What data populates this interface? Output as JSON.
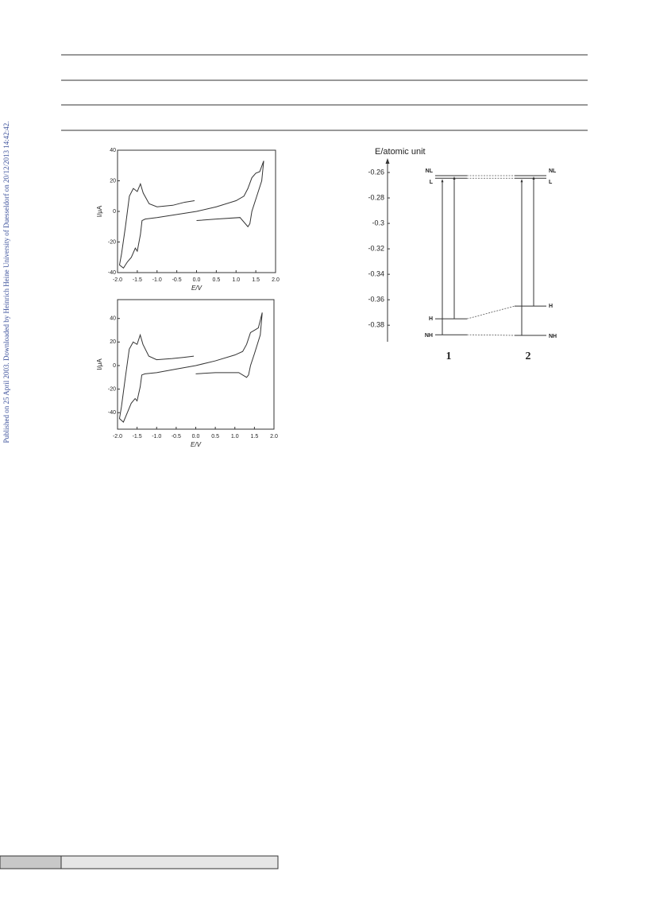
{
  "sidebar": "Published on 25 April 2003. Downloaded by Heinrich Heine University of Duesseldorf on 20/12/2013 14:42:42.",
  "chart_data": [
    {
      "type": "line",
      "xlabel": "E/V",
      "ylabel": "I/μA",
      "xlim": [
        -2.0,
        2.0
      ],
      "ylim": [
        -40,
        40
      ],
      "xticks": [
        {
          "value": -2.0,
          "label": "-2.0"
        },
        {
          "value": -1.5,
          "label": "-1.5"
        },
        {
          "value": -1.0,
          "label": "-1.0"
        },
        {
          "value": -0.5,
          "label": "-0.5"
        },
        {
          "value": 0,
          "label": "0.0"
        },
        {
          "value": 0.5,
          "label": "0.5"
        },
        {
          "value": 1.0,
          "label": "1.0"
        },
        {
          "value": 1.5,
          "label": "1.5"
        },
        {
          "value": 2.0,
          "label": "2.0"
        }
      ],
      "yticks": [
        40,
        20,
        0,
        -20,
        -40
      ],
      "series": [
        {
          "color": "#333333",
          "x": [
            -0.05,
            -0.3,
            -0.6,
            -1.0,
            -1.2,
            -1.35,
            -1.42,
            -1.5,
            -1.6,
            -1.7,
            -1.8,
            -1.9,
            -1.95,
            -1.85,
            -1.75,
            -1.65,
            -1.55,
            -1.5,
            -1.42,
            -1.38,
            -1.3,
            -1.0,
            -0.5,
            0,
            0.5,
            1.0,
            1.2,
            1.3,
            1.4,
            1.5,
            1.6,
            1.7,
            1.65,
            1.5,
            1.4,
            1.35,
            1.3,
            1.1,
            0.5,
            0
          ],
          "values": [
            7,
            6,
            4,
            3,
            5,
            12,
            18,
            13,
            15,
            10,
            -10,
            -28,
            -35,
            -37,
            -33,
            -30,
            -24,
            -26,
            -15,
            -6,
            -5,
            -4,
            -2,
            0,
            3,
            7,
            10,
            15,
            22,
            25,
            26,
            33,
            20,
            8,
            0,
            -8,
            -10,
            -4,
            -5,
            -6
          ]
        }
      ]
    },
    {
      "type": "line",
      "xlabel": "E/V",
      "ylabel": "I/μA",
      "xlim": [
        -2.0,
        2.0
      ],
      "ylim": [
        -54,
        56
      ],
      "xticks": [
        {
          "value": -2.0,
          "label": "-2.0"
        },
        {
          "value": -1.5,
          "label": "-1.5"
        },
        {
          "value": -1.0,
          "label": "-1.0"
        },
        {
          "value": -0.5,
          "label": "-0.5"
        },
        {
          "value": 0,
          "label": "0.0"
        },
        {
          "value": 0.5,
          "label": "0.5"
        },
        {
          "value": 1.0,
          "label": "1.0"
        },
        {
          "value": 1.5,
          "label": "1.5"
        },
        {
          "value": 2.0,
          "label": "2.0"
        }
      ],
      "yticks": [
        40,
        20,
        0,
        -20,
        -40
      ],
      "series": [
        {
          "color": "#333333",
          "x": [
            -0.05,
            -0.3,
            -0.6,
            -1.0,
            -1.2,
            -1.35,
            -1.42,
            -1.5,
            -1.6,
            -1.7,
            -1.8,
            -1.9,
            -1.95,
            -1.85,
            -1.75,
            -1.65,
            -1.55,
            -1.5,
            -1.42,
            -1.38,
            -1.3,
            -1.0,
            -0.5,
            0,
            0.5,
            1.0,
            1.2,
            1.3,
            1.4,
            1.5,
            1.6,
            1.7,
            1.65,
            1.5,
            1.4,
            1.35,
            1.3,
            1.1,
            0.5,
            0
          ],
          "values": [
            8,
            7,
            6,
            5,
            8,
            18,
            26,
            18,
            20,
            14,
            -10,
            -35,
            -45,
            -48,
            -40,
            -32,
            -28,
            -30,
            -18,
            -8,
            -7,
            -6,
            -3,
            0,
            4,
            9,
            12,
            18,
            28,
            30,
            32,
            45,
            26,
            10,
            0,
            -8,
            -10,
            -6,
            -6,
            -7
          ]
        }
      ]
    },
    {
      "type": "levels",
      "ylabel": "E/atomic unit",
      "ylim": [
        -0.393,
        -0.25
      ],
      "yticks": [
        -0.26,
        -0.28,
        -0.3,
        -0.32,
        -0.34,
        -0.36,
        -0.38
      ],
      "compounds": [
        {
          "name": "1",
          "levels": [
            {
              "name": "NL",
              "value": -0.2625
            },
            {
              "name": "L",
              "value": -0.2645
            },
            {
              "name": "H",
              "value": -0.375
            },
            {
              "name": "NH",
              "value": -0.3875
            }
          ]
        },
        {
          "name": "2",
          "levels": [
            {
              "name": "NL",
              "value": -0.2625
            },
            {
              "name": "L",
              "value": -0.2645
            },
            {
              "name": "H",
              "value": -0.365
            },
            {
              "name": "NH",
              "value": -0.388
            }
          ]
        }
      ]
    }
  ]
}
